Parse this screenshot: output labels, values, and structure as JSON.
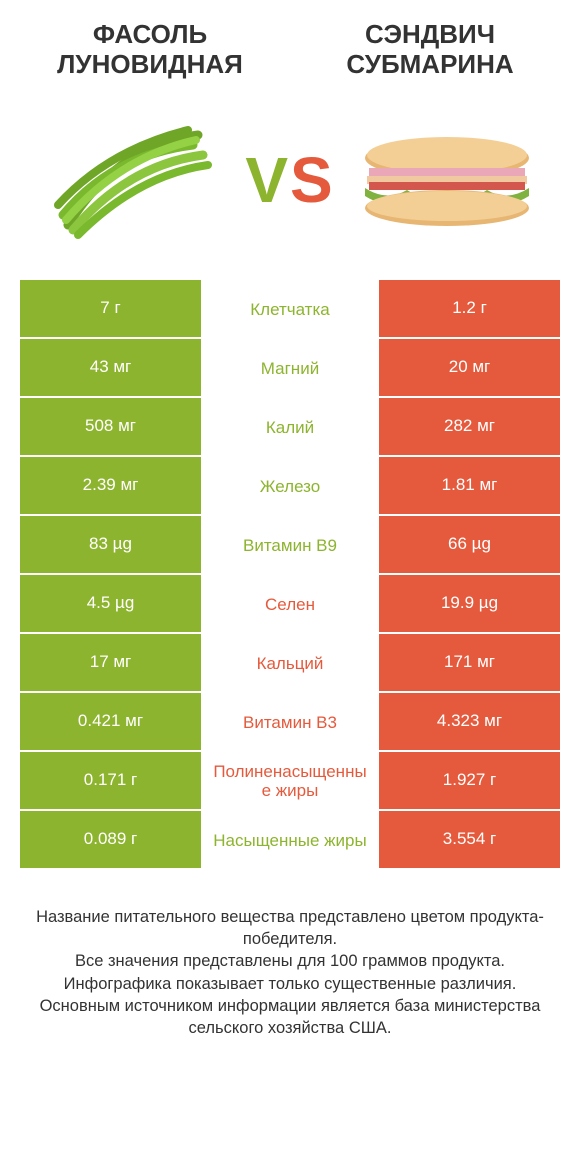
{
  "left_title": "ФАСОЛЬ ЛУНОВИДНАЯ",
  "right_title": "СЭНДВИЧ СУБМАРИНА",
  "vs_v": "V",
  "vs_s": "S",
  "colors": {
    "green": "#8db42e",
    "orange": "#e55a3c",
    "green_text": "#8db42e",
    "orange_text": "#e55a3c",
    "v_color": "#8db42e",
    "s_color": "#e55a3c"
  },
  "rows": [
    {
      "left": "7 г",
      "label": "Клетчатка",
      "right": "1.2 г",
      "winner": "left"
    },
    {
      "left": "43 мг",
      "label": "Магний",
      "right": "20 мг",
      "winner": "left"
    },
    {
      "left": "508 мг",
      "label": "Калий",
      "right": "282 мг",
      "winner": "left"
    },
    {
      "left": "2.39 мг",
      "label": "Железо",
      "right": "1.81 мг",
      "winner": "left"
    },
    {
      "left": "83 µg",
      "label": "Витамин B9",
      "right": "66 µg",
      "winner": "left"
    },
    {
      "left": "4.5 µg",
      "label": "Селен",
      "right": "19.9 µg",
      "winner": "right"
    },
    {
      "left": "17 мг",
      "label": "Кальций",
      "right": "171 мг",
      "winner": "right"
    },
    {
      "left": "0.421 мг",
      "label": "Витамин B3",
      "right": "4.323 мг",
      "winner": "right"
    },
    {
      "left": "0.171 г",
      "label": "Полиненасыщенные жиры",
      "right": "1.927 г",
      "winner": "right"
    },
    {
      "left": "0.089 г",
      "label": "Насыщенные жиры",
      "right": "3.554 г",
      "winner": "left"
    }
  ],
  "footer": "Название питательного вещества представлено цветом продукта-победителя.\nВсе значения представлены для 100 граммов продукта.\nИнфографика показывает только существенные различия.\nОсновным источником информации является база министерства сельского хозяйства США."
}
